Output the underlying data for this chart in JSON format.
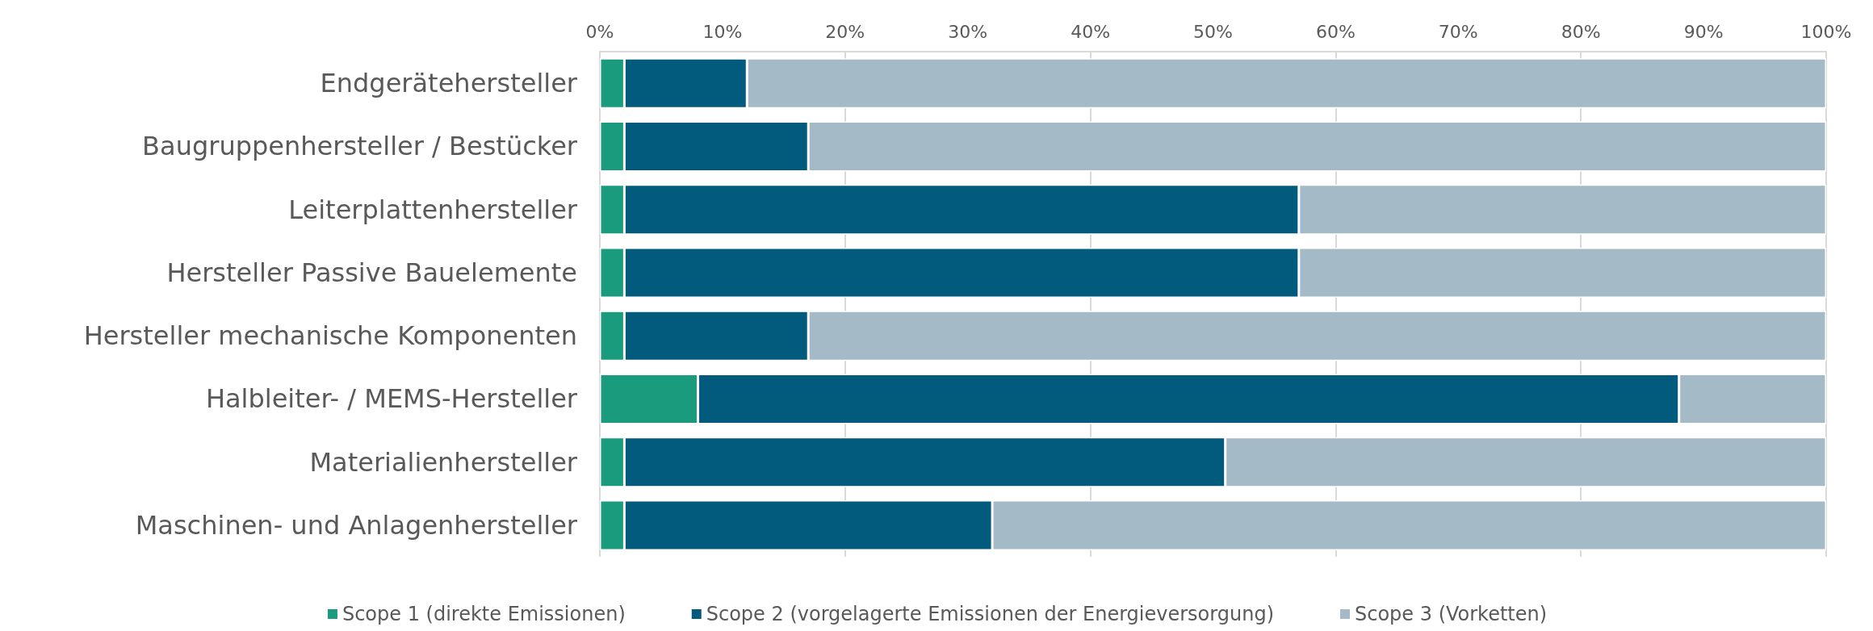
{
  "chart_data": {
    "type": "bar",
    "orientation": "horizontal",
    "stacked": true,
    "categories": [
      "Endgerätehersteller",
      "Baugruppenhersteller / Bestücker",
      "Leiterplattenhersteller",
      "Hersteller Passive Bauelemente",
      "Hersteller mechanische Komponenten",
      "Halbleiter- / MEMS-Hersteller",
      "Materialienhersteller",
      "Maschinen- und Anlagenhersteller"
    ],
    "series": [
      {
        "name": "Scope 1 (direkte Emissionen)",
        "color": "#1a9b7d",
        "values": [
          2,
          2,
          2,
          2,
          2,
          8,
          2,
          2
        ]
      },
      {
        "name": "Scope 2 (vorgelagerte Emissionen der Energieversorgung)",
        "color": "#025a7d",
        "values": [
          10,
          15,
          55,
          55,
          15,
          80,
          49,
          30
        ]
      },
      {
        "name": "Scope 3 (Vorketten)",
        "color": "#a5bac7",
        "values": [
          88,
          83,
          43,
          43,
          83,
          12,
          49,
          68
        ]
      }
    ],
    "xlim": [
      0,
      100
    ],
    "xticks": [
      {
        "value": 0,
        "label": "0%"
      },
      {
        "value": 10,
        "label": "10%"
      },
      {
        "value": 20,
        "label": "20%"
      },
      {
        "value": 30,
        "label": "30%"
      },
      {
        "value": 40,
        "label": "40%"
      },
      {
        "value": 50,
        "label": "50%"
      },
      {
        "value": 60,
        "label": "60%"
      },
      {
        "value": 70,
        "label": "70%"
      },
      {
        "value": 80,
        "label": "80%"
      },
      {
        "value": 90,
        "label": "90%"
      },
      {
        "value": 100,
        "label": "100%"
      }
    ],
    "grid": "x",
    "legend": "bottom"
  }
}
